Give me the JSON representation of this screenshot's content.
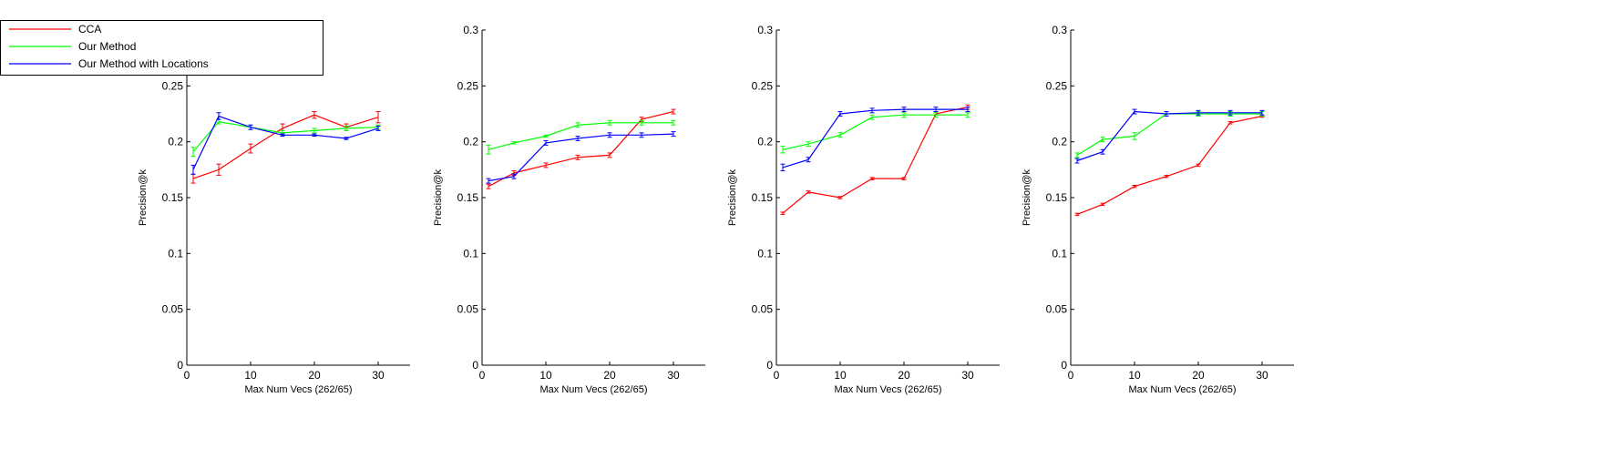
{
  "legend": {
    "entries": [
      {
        "label": "CCA",
        "color": "#ff0000"
      },
      {
        "label": "Our Method",
        "color": "#00ff00"
      },
      {
        "label": "Our Method with Locations",
        "color": "#0000ff"
      }
    ]
  },
  "chart_data": [
    {
      "type": "line",
      "xlabel": "Max Num Vecs (262/65)",
      "ylabel": "Precision@k",
      "xlim": [
        0,
        35
      ],
      "ylim": [
        0,
        0.3
      ],
      "xticks": [
        0,
        10,
        20,
        30
      ],
      "yticks": [
        0,
        0.05,
        0.1,
        0.15,
        0.2,
        0.25,
        0.3
      ],
      "x": [
        1,
        5,
        10,
        15,
        20,
        25,
        30
      ],
      "series": [
        {
          "name": "CCA",
          "color": "#ff0000",
          "values": [
            0.167,
            0.175,
            0.194,
            0.212,
            0.224,
            0.213,
            0.222
          ],
          "err": [
            0.004,
            0.005,
            0.004,
            0.004,
            0.003,
            0.003,
            0.005
          ]
        },
        {
          "name": "Our Method",
          "color": "#00ff00",
          "values": [
            0.191,
            0.218,
            0.213,
            0.208,
            0.21,
            0.212,
            0.213
          ],
          "err": [
            0.004,
            0.002,
            0.002,
            0.002,
            0.002,
            0.002,
            0.002
          ]
        },
        {
          "name": "Our Method with Locations",
          "color": "#0000ff",
          "values": [
            0.175,
            0.223,
            0.213,
            0.206,
            0.206,
            0.203,
            0.212
          ],
          "err": [
            0.004,
            0.003,
            0.002,
            0.001,
            0.001,
            0.001,
            0.002
          ]
        }
      ]
    },
    {
      "type": "line",
      "xlabel": "Max Num Vecs (262/65)",
      "ylabel": "Precision@k",
      "xlim": [
        0,
        35
      ],
      "ylim": [
        0,
        0.3
      ],
      "xticks": [
        0,
        10,
        20,
        30
      ],
      "yticks": [
        0,
        0.05,
        0.1,
        0.15,
        0.2,
        0.25,
        0.3
      ],
      "x": [
        1,
        5,
        10,
        15,
        20,
        25,
        30
      ],
      "series": [
        {
          "name": "CCA",
          "color": "#ff0000",
          "values": [
            0.16,
            0.172,
            0.179,
            0.186,
            0.188,
            0.22,
            0.227
          ],
          "err": [
            0.002,
            0.002,
            0.002,
            0.002,
            0.002,
            0.002,
            0.002
          ]
        },
        {
          "name": "Our Method",
          "color": "#00ff00",
          "values": [
            0.193,
            0.199,
            0.205,
            0.215,
            0.217,
            0.217,
            0.217
          ],
          "err": [
            0.004,
            0.001,
            0.001,
            0.002,
            0.002,
            0.002,
            0.002
          ]
        },
        {
          "name": "Our Method with Locations",
          "color": "#0000ff",
          "values": [
            0.165,
            0.169,
            0.199,
            0.203,
            0.206,
            0.206,
            0.207
          ],
          "err": [
            0.002,
            0.002,
            0.002,
            0.002,
            0.002,
            0.002,
            0.002
          ]
        }
      ]
    },
    {
      "type": "line",
      "xlabel": "Max Num Vecs (262/65)",
      "ylabel": "Precision@k",
      "xlim": [
        0,
        35
      ],
      "ylim": [
        0,
        0.3
      ],
      "xticks": [
        0,
        10,
        20,
        30
      ],
      "yticks": [
        0,
        0.05,
        0.1,
        0.15,
        0.2,
        0.25,
        0.3
      ],
      "x": [
        1,
        5,
        10,
        15,
        20,
        25,
        30
      ],
      "series": [
        {
          "name": "CCA",
          "color": "#ff0000",
          "values": [
            0.136,
            0.155,
            0.15,
            0.167,
            0.167,
            0.225,
            0.231
          ],
          "err": [
            0.001,
            0.001,
            0.001,
            0.001,
            0.001,
            0.001,
            0.002
          ]
        },
        {
          "name": "Our Method",
          "color": "#00ff00",
          "values": [
            0.193,
            0.198,
            0.206,
            0.222,
            0.224,
            0.224,
            0.224
          ],
          "err": [
            0.003,
            0.002,
            0.002,
            0.002,
            0.002,
            0.002,
            0.002
          ]
        },
        {
          "name": "Our Method with Locations",
          "color": "#0000ff",
          "values": [
            0.177,
            0.184,
            0.225,
            0.228,
            0.229,
            0.229,
            0.229
          ],
          "err": [
            0.003,
            0.002,
            0.002,
            0.002,
            0.002,
            0.002,
            0.002
          ]
        }
      ]
    },
    {
      "type": "line",
      "xlabel": "Max Num Vecs (262/65)",
      "ylabel": "Precision@k",
      "xlim": [
        0,
        35
      ],
      "ylim": [
        0,
        0.3
      ],
      "xticks": [
        0,
        10,
        20,
        30
      ],
      "yticks": [
        0,
        0.05,
        0.1,
        0.15,
        0.2,
        0.25,
        0.3
      ],
      "x": [
        1,
        5,
        10,
        15,
        20,
        25,
        30
      ],
      "series": [
        {
          "name": "CCA",
          "color": "#ff0000",
          "values": [
            0.135,
            0.144,
            0.16,
            0.169,
            0.179,
            0.217,
            0.223
          ],
          "err": [
            0.001,
            0.001,
            0.001,
            0.001,
            0.001,
            0.001,
            0.001
          ]
        },
        {
          "name": "Our Method",
          "color": "#00ff00",
          "values": [
            0.188,
            0.202,
            0.205,
            0.225,
            0.225,
            0.225,
            0.225
          ],
          "err": [
            0.002,
            0.002,
            0.003,
            0.002,
            0.002,
            0.002,
            0.002
          ]
        },
        {
          "name": "Our Method with Locations",
          "color": "#0000ff",
          "values": [
            0.183,
            0.191,
            0.227,
            0.225,
            0.226,
            0.226,
            0.226
          ],
          "err": [
            0.002,
            0.002,
            0.002,
            0.002,
            0.002,
            0.002,
            0.002
          ]
        }
      ]
    }
  ]
}
